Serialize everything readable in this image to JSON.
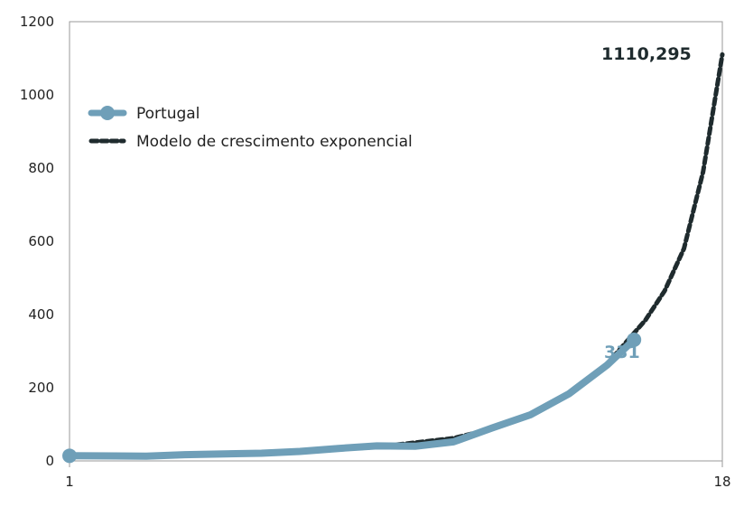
{
  "chart_data": {
    "type": "line",
    "xlim": [
      1,
      18
    ],
    "ylim": [
      0,
      1200
    ],
    "x_ticks": [
      "1",
      "18"
    ],
    "y_ticks": [
      "0",
      "200",
      "400",
      "600",
      "800",
      "1000",
      "1200"
    ],
    "grid": false,
    "legend_position": "top-left",
    "series": [
      {
        "name": "Portugal",
        "color": "#6f9fb8",
        "style": "solid",
        "points": [
          {
            "x": 1,
            "y": 14
          },
          {
            "x": 3,
            "y": 13
          },
          {
            "x": 4,
            "y": 17
          },
          {
            "x": 6,
            "y": 21
          },
          {
            "x": 7,
            "y": 26
          },
          {
            "x": 8,
            "y": 34
          },
          {
            "x": 9,
            "y": 41
          },
          {
            "x": 10,
            "y": 40
          },
          {
            "x": 11,
            "y": 52
          },
          {
            "x": 12,
            "y": 90
          },
          {
            "x": 13,
            "y": 126
          },
          {
            "x": 14,
            "y": 183
          },
          {
            "x": 15,
            "y": 262
          },
          {
            "x": 15.7,
            "y": 331
          }
        ]
      },
      {
        "name": "Modelo de crescimento exponencial",
        "color": "#1f2b2e",
        "style": "dashed",
        "points": [
          {
            "x": 1,
            "y": 14
          },
          {
            "x": 3,
            "y": 14
          },
          {
            "x": 5,
            "y": 18
          },
          {
            "x": 7,
            "y": 25
          },
          {
            "x": 9,
            "y": 38
          },
          {
            "x": 11,
            "y": 62
          },
          {
            "x": 12,
            "y": 88
          },
          {
            "x": 13,
            "y": 126
          },
          {
            "x": 14,
            "y": 183
          },
          {
            "x": 15,
            "y": 265
          },
          {
            "x": 16,
            "y": 385
          },
          {
            "x": 16.5,
            "y": 465
          },
          {
            "x": 17,
            "y": 580
          },
          {
            "x": 17.5,
            "y": 790
          },
          {
            "x": 18,
            "y": 1110.295
          }
        ]
      }
    ],
    "annotations": [
      {
        "text": "1110,295",
        "series": 1,
        "color": "#1f2b2e"
      },
      {
        "text": "331",
        "series": 0,
        "color": "#6f9fb8"
      }
    ]
  }
}
